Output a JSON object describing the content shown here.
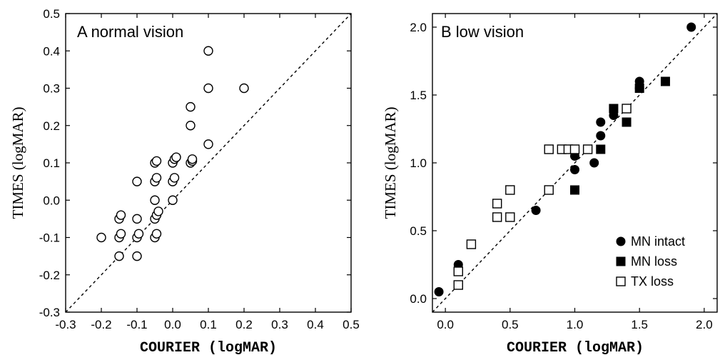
{
  "chart_data": [
    {
      "type": "scatter",
      "title": "A  normal vision",
      "xlabel": "COURIER  (logMAR)",
      "ylabel": "TIMES (logMAR)",
      "xlim": [
        -0.3,
        0.5
      ],
      "ylim": [
        -0.3,
        0.5
      ],
      "x_ticks": [
        "-0.3",
        "-0.2",
        "-0.1",
        "0.0",
        "0.1",
        "0.2",
        "0.3",
        "0.4",
        "0.5"
      ],
      "y_ticks": [
        "-0.3",
        "-0.2",
        "-0.1",
        "0.0",
        "0.1",
        "0.2",
        "0.3",
        "0.4",
        "0.5"
      ],
      "identity_line": true,
      "grid": false,
      "series": [
        {
          "marker": "open-circle",
          "points": [
            [
              -0.2,
              -0.1
            ],
            [
              -0.15,
              -0.15
            ],
            [
              -0.15,
              -0.1
            ],
            [
              -0.145,
              -0.09
            ],
            [
              -0.15,
              -0.05
            ],
            [
              -0.145,
              -0.04
            ],
            [
              -0.1,
              -0.15
            ],
            [
              -0.1,
              -0.1
            ],
            [
              -0.095,
              -0.09
            ],
            [
              -0.1,
              -0.05
            ],
            [
              -0.1,
              0.05
            ],
            [
              -0.05,
              -0.1
            ],
            [
              -0.045,
              -0.09
            ],
            [
              -0.05,
              -0.05
            ],
            [
              -0.045,
              -0.04
            ],
            [
              -0.04,
              -0.03
            ],
            [
              -0.05,
              0.0
            ],
            [
              -0.05,
              0.05
            ],
            [
              -0.045,
              0.06
            ],
            [
              -0.05,
              0.1
            ],
            [
              -0.045,
              0.105
            ],
            [
              0.0,
              0.0
            ],
            [
              0.0,
              0.05
            ],
            [
              0.005,
              0.06
            ],
            [
              0.0,
              0.1
            ],
            [
              0.005,
              0.11
            ],
            [
              0.01,
              0.115
            ],
            [
              0.05,
              0.1
            ],
            [
              0.055,
              0.105
            ],
            [
              0.055,
              0.11
            ],
            [
              0.05,
              0.2
            ],
            [
              0.05,
              0.25
            ],
            [
              0.1,
              0.15
            ],
            [
              0.1,
              0.3
            ],
            [
              0.1,
              0.4
            ],
            [
              0.2,
              0.3
            ]
          ]
        }
      ]
    },
    {
      "type": "scatter",
      "title": "B  low vision",
      "xlabel": "COURIER  (logMAR)",
      "ylabel": "TIMES (logMAR)",
      "xlim": [
        -0.1,
        2.1
      ],
      "ylim": [
        -0.1,
        2.1
      ],
      "x_ticks": [
        "0.0",
        "0.5",
        "1.0",
        "1.5",
        "2.0"
      ],
      "y_ticks": [
        "0.0",
        "0.5",
        "1.0",
        "1.5",
        "2.0"
      ],
      "identity_line": true,
      "grid": false,
      "legend": {
        "position": "bottom-right",
        "entries": [
          {
            "series": "MN  intact",
            "marker": "filled-circle"
          },
          {
            "series": "MN  loss",
            "marker": "filled-square"
          },
          {
            "series": "TX  loss",
            "marker": "open-square"
          }
        ]
      },
      "series": [
        {
          "name": "MN  intact",
          "marker": "filled-circle",
          "points": [
            [
              -0.05,
              0.05
            ],
            [
              0.1,
              0.25
            ],
            [
              0.7,
              0.65
            ],
            [
              1.0,
              0.95
            ],
            [
              1.0,
              1.05
            ],
            [
              1.15,
              1.0
            ],
            [
              1.2,
              1.2
            ],
            [
              1.2,
              1.3
            ],
            [
              1.3,
              1.35
            ],
            [
              1.4,
              1.4
            ],
            [
              1.5,
              1.55
            ],
            [
              1.5,
              1.6
            ],
            [
              1.9,
              2.0
            ]
          ]
        },
        {
          "name": "MN  loss",
          "marker": "filled-square",
          "points": [
            [
              1.0,
              0.8
            ],
            [
              1.2,
              1.1
            ],
            [
              1.3,
              1.4
            ],
            [
              1.4,
              1.3
            ],
            [
              1.4,
              1.4
            ],
            [
              1.5,
              1.55
            ],
            [
              1.7,
              1.6
            ]
          ]
        },
        {
          "name": "TX  loss",
          "marker": "open-square",
          "points": [
            [
              0.1,
              0.1
            ],
            [
              0.1,
              0.2
            ],
            [
              0.2,
              0.4
            ],
            [
              0.4,
              0.6
            ],
            [
              0.4,
              0.7
            ],
            [
              0.5,
              0.6
            ],
            [
              0.5,
              0.8
            ],
            [
              0.8,
              0.8
            ],
            [
              0.8,
              1.1
            ],
            [
              0.9,
              1.1
            ],
            [
              0.95,
              1.1
            ],
            [
              1.0,
              1.1
            ],
            [
              1.1,
              1.1
            ],
            [
              1.4,
              1.4
            ]
          ]
        }
      ]
    }
  ]
}
